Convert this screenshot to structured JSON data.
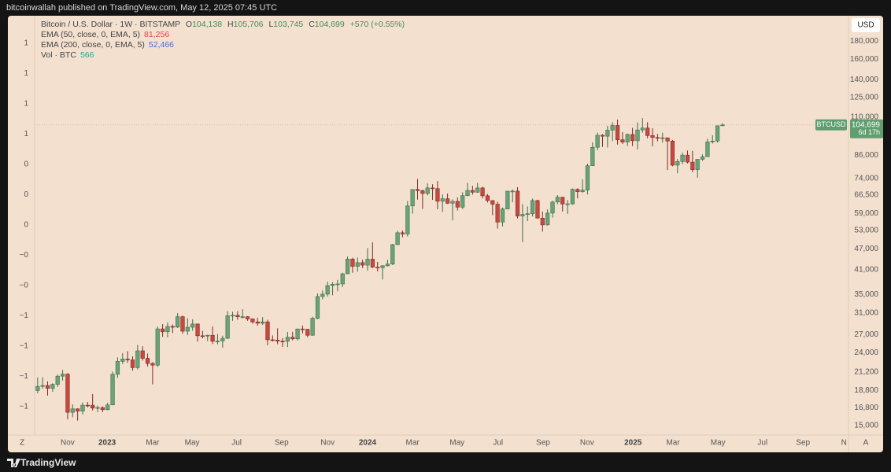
{
  "top_bar": {
    "text": "bitcoinwallah published on TradingView.com, May 12, 2025 07:45 UTC"
  },
  "footer": {
    "brand": "TradingView"
  },
  "chart_data": {
    "type": "candlestick",
    "legend": {
      "symbol": "Bitcoin / U.S. Dollar · 1W · BITSTAMP",
      "ohlc": [
        {
          "key": "O",
          "price": {
            "value": 104138,
            "label": "104,138"
          }
        },
        {
          "key": "H",
          "price": {
            "value": 105706,
            "label": "105,706"
          }
        },
        {
          "key": "L",
          "price": {
            "value": 103745,
            "label": "103,745"
          }
        },
        {
          "key": "C",
          "price": {
            "value": 104699,
            "label": "104,699"
          }
        }
      ],
      "change": "+570 (+0.55%)",
      "indicators": [
        {
          "name": "EMA (50, close, 0, EMA, 5)",
          "reading": {
            "value": 81256,
            "label": "81,256"
          },
          "color": "#e0474c"
        },
        {
          "name": "EMA (200, close, 0, EMA, 5)",
          "reading": {
            "value": 52466,
            "label": "52,466"
          },
          "color": "#3f6fd8"
        },
        {
          "name": "Vol · BTC",
          "reading": 566,
          "color": "#26a69a"
        }
      ]
    },
    "currency": "USD",
    "symbol_tag": "BTCUSD",
    "last_price": {
      "value": 104699,
      "label": "104,699"
    },
    "countdown": "6d 17h",
    "scale_buttons": [
      "Z",
      "A"
    ],
    "left_axis_labels": [
      "1",
      "1",
      "1",
      "1",
      "0",
      "0",
      "0",
      "−0",
      "−0",
      "−1",
      "−1",
      "−1",
      "−1"
    ],
    "up_color": "#6aa377",
    "down_color": "#c9483f",
    "log_scale": true,
    "grid": false,
    "xlim": [
      -0.6,
      162.2
    ],
    "xticks": [
      {
        "value": 6.0,
        "label": "Nov"
      },
      {
        "value": 13.9,
        "label": "2023"
      },
      {
        "value": 23.0,
        "label": "Mar"
      },
      {
        "value": 30.9,
        "label": "May"
      },
      {
        "value": 39.8,
        "label": "Jul"
      },
      {
        "value": 48.8,
        "label": "Sep"
      },
      {
        "value": 58.0,
        "label": "Nov"
      },
      {
        "value": 66.0,
        "label": "2024"
      },
      {
        "value": 75.0,
        "label": "Mar"
      },
      {
        "value": 83.9,
        "label": "May"
      },
      {
        "value": 92.1,
        "label": "Jul"
      },
      {
        "value": 101.1,
        "label": "Sep"
      },
      {
        "value": 109.9,
        "label": "Nov"
      },
      {
        "value": 119.1,
        "label": "2025"
      },
      {
        "value": 127.1,
        "label": "Mar"
      },
      {
        "value": 136.1,
        "label": "May"
      },
      {
        "value": 145.0,
        "label": "Jul"
      },
      {
        "value": 153.1,
        "label": "Sep"
      },
      {
        "value": 161.3,
        "label": "N"
      }
    ],
    "ylim": [
      14100,
      212000
    ],
    "yticks": [
      {
        "value": 180000,
        "label": "180,000"
      },
      {
        "value": 160000,
        "label": "160,000"
      },
      {
        "value": 140000,
        "label": "140,000"
      },
      {
        "value": 125000,
        "label": "125,000"
      },
      {
        "value": 110000,
        "label": "110,000"
      },
      {
        "value": 86000,
        "label": "86,000"
      },
      {
        "value": 74000,
        "label": "74,000"
      },
      {
        "value": 66500,
        "label": "66,500"
      },
      {
        "value": 59000,
        "label": "59,000"
      },
      {
        "value": 53000,
        "label": "53,000"
      },
      {
        "value": 47000,
        "label": "47,000"
      },
      {
        "value": 41000,
        "label": "41,000"
      },
      {
        "value": 35000,
        "label": "35,000"
      },
      {
        "value": 31000,
        "label": "31,000"
      },
      {
        "value": 27000,
        "label": "27,000"
      },
      {
        "value": 24000,
        "label": "24,000"
      },
      {
        "value": 21200,
        "label": "21,200"
      },
      {
        "value": 18800,
        "label": "18,800"
      },
      {
        "value": 16800,
        "label": "16,800"
      },
      {
        "value": 15000,
        "label": "15,000"
      }
    ],
    "open": [
      18800,
      19310,
      19420,
      19070,
      19570,
      20630,
      20900,
      16330,
      16700,
      16450,
      17100,
      17090,
      16780,
      16840,
      16610,
      17130,
      20880,
      22700,
      23050,
      22930,
      21790,
      24300,
      23150,
      22400,
      22150,
      28000,
      27480,
      28450,
      28330,
      30300,
      27590,
      28300,
      28900,
      26780,
      26750,
      26870,
      25850,
      25900,
      26350,
      30500,
      30580,
      30280,
      30300,
      29860,
      29300,
      29050,
      29300,
      26100,
      26050,
      25870,
      25840,
      26530,
      26250,
      27990,
      27930,
      26870,
      29990,
      34530,
      35050,
      37050,
      37370,
      37440,
      39980,
      43970,
      41950,
      42990,
      42280,
      43950,
      41740,
      41580,
      42120,
      42590,
      48300,
      52130,
      51720,
      62000,
      68950,
      68400,
      67200,
      69650,
      69350,
      63900,
      64950,
      63100,
      63850,
      61500,
      66250,
      68550,
      67750,
      69650,
      66200,
      64200,
      62700,
      55850,
      60800,
      68200,
      68250,
      58100,
      58700,
      58950,
      64200,
      57300,
      54850,
      59200,
      63600,
      65600,
      62800,
      62850,
      69000,
      68000,
      68700,
      80400,
      90600,
      97900,
      97300,
      101200,
      104300,
      95100,
      93700,
      98400,
      94500,
      101300,
      102600,
      97700,
      96500,
      96100,
      96300,
      94300,
      80700,
      82600,
      86100,
      82300,
      78400,
      83800,
      85200,
      93800,
      94300,
      104138
    ],
    "high": [
      20450,
      20480,
      19950,
      19700,
      20850,
      21480,
      21050,
      17190,
      16750,
      17400,
      17460,
      18380,
      17060,
      16970,
      17380,
      21250,
      23300,
      23950,
      24250,
      23440,
      25250,
      25020,
      23880,
      22600,
      28400,
      28870,
      29200,
      28800,
      31000,
      30500,
      30000,
      29800,
      29000,
      27650,
      26950,
      28450,
      27100,
      26800,
      31400,
      31300,
      31400,
      31800,
      30400,
      29990,
      30100,
      30200,
      29700,
      26850,
      28100,
      26400,
      27450,
      27480,
      28050,
      28600,
      28000,
      30300,
      35200,
      35900,
      37980,
      37900,
      38450,
      40250,
      44700,
      44350,
      44400,
      43820,
      47250,
      49000,
      43200,
      42260,
      43800,
      48500,
      52800,
      52900,
      64000,
      69000,
      73800,
      68900,
      71700,
      71300,
      72800,
      66800,
      67200,
      64700,
      65500,
      67700,
      71950,
      70600,
      71950,
      70200,
      67000,
      64300,
      63800,
      61400,
      68300,
      69000,
      70000,
      62700,
      61800,
      65000,
      64500,
      59800,
      60600,
      64100,
      66500,
      65600,
      64400,
      69400,
      69500,
      73600,
      81500,
      93500,
      99600,
      98600,
      104000,
      106500,
      108300,
      99900,
      99000,
      102700,
      106400,
      109400,
      106500,
      102500,
      98800,
      99500,
      96500,
      95000,
      84000,
      87500,
      88700,
      88500,
      84000,
      86500,
      95700,
      97900,
      104300,
      105706
    ],
    "low": [
      18470,
      19020,
      18190,
      18650,
      19250,
      20050,
      15600,
      15820,
      15480,
      16100,
      16870,
      16530,
      16360,
      16340,
      16550,
      17100,
      20410,
      22300,
      22500,
      21380,
      21530,
      22820,
      21950,
      19570,
      21900,
      26600,
      26500,
      27250,
      28170,
      27130,
      26950,
      27670,
      25800,
      26340,
      25880,
      25400,
      25350,
      24800,
      26250,
      29500,
      29700,
      29950,
      29500,
      28950,
      28600,
      28750,
      25200,
      25800,
      25350,
      24900,
      24900,
      26000,
      26000,
      27200,
      26550,
      26800,
      29800,
      33900,
      34500,
      34800,
      35700,
      36700,
      39980,
      40250,
      40550,
      41450,
      40800,
      41500,
      40600,
      38550,
      41900,
      42300,
      48100,
      50650,
      50900,
      59000,
      64600,
      60800,
      66400,
      64500,
      60700,
      59600,
      62800,
      56500,
      60200,
      60800,
      66100,
      66650,
      67500,
      65100,
      63400,
      58400,
      53550,
      54300,
      60650,
      63500,
      57200,
      49100,
      56200,
      57900,
      57200,
      52550,
      54600,
      57500,
      62700,
      59800,
      58900,
      62450,
      65100,
      67500,
      66800,
      80300,
      88800,
      90800,
      90500,
      94200,
      92200,
      92500,
      91300,
      91300,
      89300,
      99500,
      96000,
      91200,
      94100,
      93400,
      78200,
      80100,
      76600,
      81200,
      81600,
      77100,
      74400,
      83000,
      85200,
      92800,
      93400,
      103745
    ],
    "close": [
      19310,
      19420,
      19070,
      19570,
      20630,
      20900,
      16330,
      16700,
      16450,
      17100,
      17090,
      16780,
      16840,
      16610,
      17130,
      20880,
      22700,
      23050,
      22930,
      21790,
      24300,
      23150,
      22400,
      22150,
      28000,
      27480,
      28450,
      28330,
      30300,
      27590,
      28300,
      28900,
      26780,
      26750,
      26870,
      25850,
      25900,
      26350,
      30500,
      30580,
      30280,
      30300,
      29860,
      29300,
      29050,
      29300,
      26100,
      26050,
      25870,
      25840,
      26530,
      26250,
      27990,
      27930,
      26870,
      29990,
      34530,
      35050,
      37050,
      37370,
      37440,
      39980,
      43970,
      41950,
      42990,
      42280,
      43950,
      41740,
      41580,
      42120,
      42590,
      48300,
      52130,
      51720,
      62000,
      68950,
      68400,
      67200,
      69650,
      69350,
      63900,
      64950,
      63100,
      63850,
      61500,
      66250,
      68550,
      67750,
      69650,
      66200,
      64200,
      62700,
      55850,
      60800,
      68200,
      68250,
      58100,
      58700,
      58950,
      64200,
      57300,
      54850,
      59200,
      63600,
      65600,
      62800,
      62850,
      69000,
      68000,
      68700,
      80400,
      90600,
      97900,
      97300,
      101200,
      104300,
      95100,
      93700,
      98400,
      94500,
      101300,
      102600,
      97700,
      96500,
      96100,
      96300,
      94300,
      80700,
      82600,
      86100,
      82300,
      78400,
      83800,
      85200,
      93800,
      94300,
      104100,
      104699
    ]
  }
}
